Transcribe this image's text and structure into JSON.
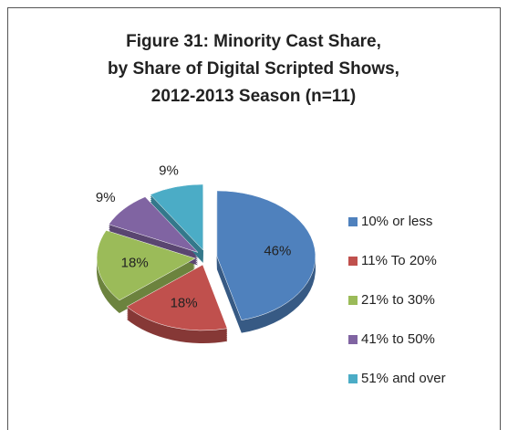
{
  "chart_data": {
    "type": "pie",
    "title": [
      "Figure 31:  Minority Cast Share,",
      "by Share of Digital Scripted Shows,",
      "2012-2013 Season (n=11)"
    ],
    "categories": [
      "10% or less",
      "11% To 20%",
      "21% to 30%",
      "41% to 50%",
      "51% and over"
    ],
    "values": [
      46,
      18,
      18,
      9,
      9
    ],
    "value_labels": [
      "46%",
      "18%",
      "18%",
      "9%",
      "9%"
    ],
    "colors": [
      "#4f81bd",
      "#c0504d",
      "#9bbb59",
      "#8064a2",
      "#4bacc6"
    ],
    "legend": "right"
  }
}
